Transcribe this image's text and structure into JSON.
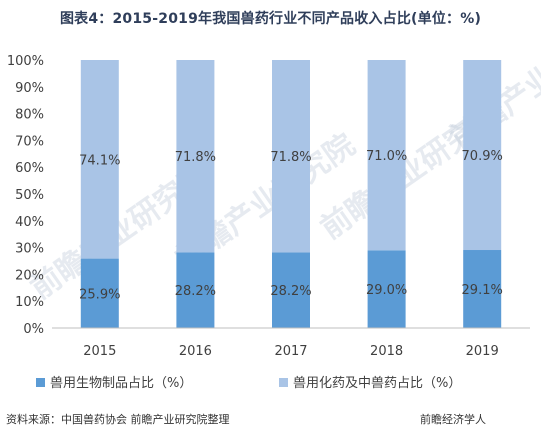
{
  "chart_data": {
    "type": "bar",
    "stacked": true,
    "title": "图表4：2015-2019年我国兽药行业不同产品收入占比(单位：%)",
    "categories": [
      "2015",
      "2016",
      "2017",
      "2018",
      "2019"
    ],
    "series": [
      {
        "name": "兽用生物制品占比（%）",
        "values": [
          25.9,
          28.2,
          28.2,
          29.0,
          29.1
        ],
        "labels": [
          "25.9%",
          "28.2%",
          "28.2%",
          "29.0%",
          "29.1%"
        ],
        "color": "#5b9bd5"
      },
      {
        "name": "兽用化药及中兽药占比（%）",
        "values": [
          74.1,
          71.8,
          71.8,
          71.0,
          70.9
        ],
        "labels": [
          "74.1%",
          "71.8%",
          "71.8%",
          "71.0%",
          "70.9%"
        ],
        "color": "#a9c4e6"
      }
    ],
    "yticks": [
      "0%",
      "10%",
      "20%",
      "30%",
      "40%",
      "50%",
      "60%",
      "70%",
      "80%",
      "90%",
      "100%"
    ],
    "ylim": [
      0,
      100
    ],
    "xlabel": "",
    "ylabel": "",
    "grid": false,
    "legend_position": "bottom"
  },
  "watermark": "前瞻产业研究院",
  "footer": "资料来源：中国兽药协会 前瞻产业研究院整理",
  "footer_right": "前瞻经济学人"
}
